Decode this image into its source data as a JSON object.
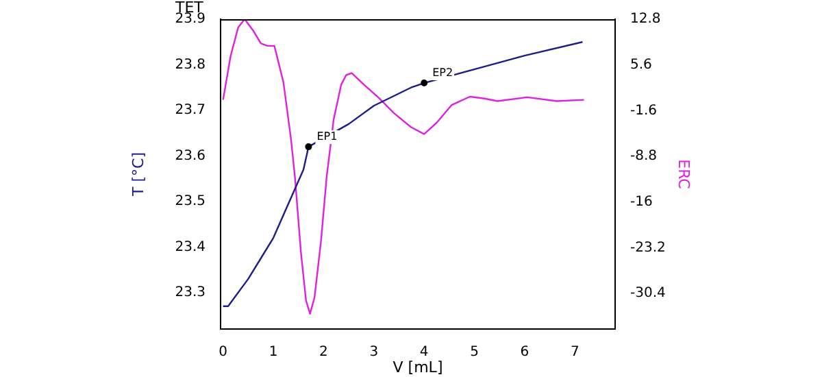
{
  "chart_data": {
    "type": "line",
    "title": "TET",
    "xlabel": "V [mL]",
    "ylabel": "T [°C]",
    "y2label": "ERC",
    "xlim": [
      -0.05,
      7.8
    ],
    "xticks": [
      0,
      1,
      2,
      3,
      4,
      5,
      6,
      7
    ],
    "ylim": [
      23.22,
      23.9
    ],
    "yticks": [
      23.3,
      23.4,
      23.5,
      23.6,
      23.7,
      23.8,
      23.9
    ],
    "y2lim": [
      -36,
      12.8
    ],
    "y2ticks": [
      -30.4,
      -23.2,
      -16,
      -8.8,
      -1.6,
      5.6,
      12.8
    ],
    "grid": false,
    "legend": false,
    "marker": "none",
    "series": [
      {
        "color": "#1c1c8c",
        "x": [
          0,
          0.1,
          0.5,
          1.0,
          1.4,
          1.6,
          1.7,
          2.5,
          3.0,
          3.74,
          4.0,
          5.0,
          6.0,
          7.15
        ],
        "values": [
          23.27,
          23.27,
          23.33,
          23.42,
          23.52,
          23.57,
          23.62,
          23.67,
          23.71,
          23.75,
          23.76,
          23.79,
          23.82,
          23.85
        ]
      },
      {
        "color": "#e020e0",
        "axis": "y2",
        "x": [
          0,
          0.15,
          0.3,
          0.43,
          0.6,
          0.75,
          0.88,
          1.02,
          1.2,
          1.35,
          1.43,
          1.55,
          1.65,
          1.73,
          1.82,
          1.95,
          2.06,
          2.2,
          2.35,
          2.45,
          2.56,
          2.8,
          3.1,
          3.4,
          3.74,
          4.0,
          4.25,
          4.55,
          4.91,
          5.2,
          5.46,
          6.05,
          6.64,
          7.18
        ],
        "values": [
          0.1,
          7,
          11.5,
          12.8,
          11,
          9,
          8.6,
          8.6,
          2.9,
          -6,
          -12.1,
          -24,
          -31.5,
          -33.6,
          -31,
          -22,
          -12.1,
          -3,
          2.5,
          4,
          4.3,
          2.5,
          0.4,
          -2,
          -4.2,
          -5.3,
          -3.5,
          -0.7,
          0.6,
          0.3,
          -0.1,
          0.5,
          -0.1,
          0.1
        ]
      }
    ],
    "annotations": [
      {
        "text": "EP1",
        "x": 1.7,
        "y": 23.62
      },
      {
        "text": "EP2",
        "x": 4.0,
        "y": 23.76
      }
    ]
  }
}
